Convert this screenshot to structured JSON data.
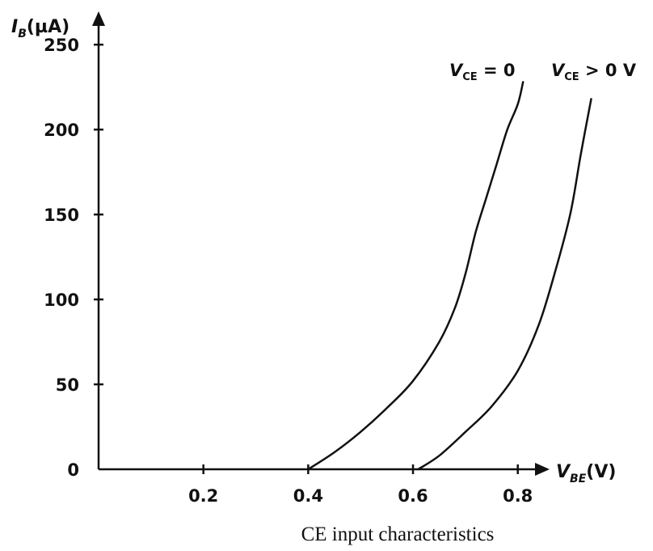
{
  "chart_data": {
    "type": "line",
    "caption": "CE input characteristics",
    "xlabel": {
      "main": "V",
      "sub": "BE",
      "unit": "(V)"
    },
    "ylabel": {
      "main": "I",
      "sub": "B",
      "unit": "(µA)"
    },
    "xlim": [
      0,
      0.93
    ],
    "ylim": [
      0,
      262
    ],
    "x_ticks": [
      {
        "value": 0.2,
        "label": "0.2"
      },
      {
        "value": 0.4,
        "label": "0.4"
      },
      {
        "value": 0.6,
        "label": "0.6"
      },
      {
        "value": 0.8,
        "label": "0.8"
      }
    ],
    "y_ticks": [
      {
        "value": 0,
        "label": "0"
      },
      {
        "value": 50,
        "label": "50"
      },
      {
        "value": 100,
        "label": "100"
      },
      {
        "value": 150,
        "label": "150"
      },
      {
        "value": 200,
        "label": "200"
      },
      {
        "value": 250,
        "label": "250"
      }
    ],
    "grid": false,
    "series": [
      {
        "label_main": "V",
        "label_sub": "CE",
        "label_rest": " = 0",
        "x": [
          0.4,
          0.45,
          0.5,
          0.55,
          0.6,
          0.65,
          0.68,
          0.7,
          0.72,
          0.74,
          0.76,
          0.78,
          0.8,
          0.81
        ],
        "y": [
          0,
          10,
          22,
          36,
          52,
          75,
          95,
          115,
          140,
          160,
          180,
          200,
          215,
          228
        ]
      },
      {
        "label_main": "V",
        "label_sub": "CE",
        "label_rest": " > 0 V",
        "x": [
          0.61,
          0.65,
          0.7,
          0.75,
          0.8,
          0.84,
          0.87,
          0.9,
          0.92,
          0.94
        ],
        "y": [
          0,
          8,
          22,
          37,
          58,
          85,
          115,
          150,
          185,
          218
        ]
      }
    ]
  }
}
